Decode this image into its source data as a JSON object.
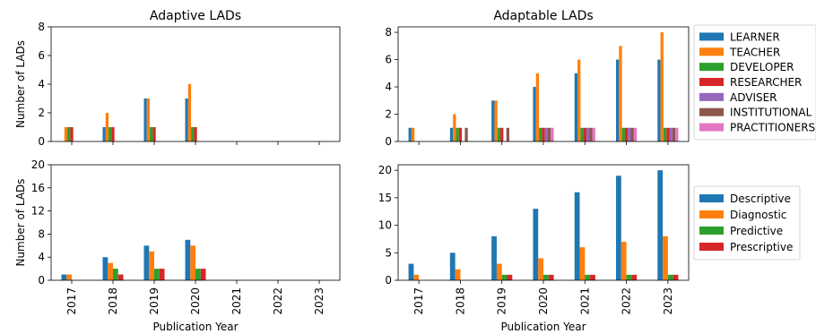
{
  "chart_data": [
    {
      "id": "adaptive-roles",
      "type": "bar",
      "title": "Adaptive LADs",
      "ylabel": "Number of LADs",
      "xlabel": "",
      "ylim": [
        0,
        8
      ],
      "yticks": [
        0,
        2,
        4,
        6,
        8
      ],
      "categories": [
        "2017",
        "2018",
        "2019",
        "2020",
        "2021",
        "2022",
        "2023"
      ],
      "show_xtick_labels": false,
      "series": [
        {
          "name": "LEARNER",
          "color": "#1f77b4",
          "values": [
            0,
            1,
            3,
            3,
            0,
            0,
            0
          ]
        },
        {
          "name": "TEACHER",
          "color": "#ff7f0e",
          "values": [
            1,
            2,
            3,
            4,
            0,
            0,
            0
          ]
        },
        {
          "name": "DEVELOPER",
          "color": "#2ca02c",
          "values": [
            1,
            1,
            1,
            1,
            0,
            0,
            0
          ]
        },
        {
          "name": "RESEARCHER",
          "color": "#d62728",
          "values": [
            1,
            1,
            1,
            1,
            0,
            0,
            0
          ]
        },
        {
          "name": "ADVISER",
          "color": "#9467bd",
          "values": [
            0,
            0,
            0,
            0,
            0,
            0,
            0
          ]
        },
        {
          "name": "INSTITUTIONAL",
          "color": "#8c564b",
          "values": [
            0,
            0,
            0,
            0,
            0,
            0,
            0
          ]
        },
        {
          "name": "PRACTITIONERS",
          "color": "#e377c2",
          "values": [
            0,
            0,
            0,
            0,
            0,
            0,
            0
          ]
        }
      ]
    },
    {
      "id": "adaptable-roles",
      "type": "bar",
      "title": "Adaptable LADs",
      "ylabel": "",
      "xlabel": "",
      "ylim": [
        0,
        8.4
      ],
      "yticks": [
        0,
        2,
        4,
        6,
        8
      ],
      "categories": [
        "2017",
        "2018",
        "2019",
        "2020",
        "2021",
        "2022",
        "2023"
      ],
      "show_xtick_labels": false,
      "legend": "outside-right",
      "series": [
        {
          "name": "LEARNER",
          "color": "#1f77b4",
          "values": [
            1,
            1,
            3,
            4,
            5,
            6,
            6
          ]
        },
        {
          "name": "TEACHER",
          "color": "#ff7f0e",
          "values": [
            1,
            2,
            3,
            5,
            6,
            7,
            8
          ]
        },
        {
          "name": "DEVELOPER",
          "color": "#2ca02c",
          "values": [
            0,
            1,
            1,
            1,
            1,
            1,
            1
          ]
        },
        {
          "name": "RESEARCHER",
          "color": "#d62728",
          "values": [
            0,
            1,
            1,
            1,
            1,
            1,
            1
          ]
        },
        {
          "name": "ADVISER",
          "color": "#9467bd",
          "values": [
            0,
            0,
            0,
            1,
            1,
            1,
            1
          ]
        },
        {
          "name": "INSTITUTIONAL",
          "color": "#8c564b",
          "values": [
            0,
            1,
            1,
            1,
            1,
            1,
            1
          ]
        },
        {
          "name": "PRACTITIONERS",
          "color": "#e377c2",
          "values": [
            0,
            0,
            0,
            1,
            1,
            1,
            1
          ]
        }
      ]
    },
    {
      "id": "adaptive-types",
      "type": "bar",
      "title": "",
      "ylabel": "Number of LADs",
      "xlabel": "Publication Year",
      "ylim": [
        0,
        20
      ],
      "yticks": [
        0,
        4,
        8,
        12,
        16,
        20
      ],
      "categories": [
        "2017",
        "2018",
        "2019",
        "2020",
        "2021",
        "2022",
        "2023"
      ],
      "show_xtick_labels": true,
      "series": [
        {
          "name": "Descriptive",
          "color": "#1f77b4",
          "values": [
            1,
            4,
            6,
            7,
            0,
            0,
            0
          ]
        },
        {
          "name": "Diagnostic",
          "color": "#ff7f0e",
          "values": [
            1,
            3,
            5,
            6,
            0,
            0,
            0
          ]
        },
        {
          "name": "Predictive",
          "color": "#2ca02c",
          "values": [
            0,
            2,
            2,
            2,
            0,
            0,
            0
          ]
        },
        {
          "name": "Prescriptive",
          "color": "#d62728",
          "values": [
            0,
            1,
            2,
            2,
            0,
            0,
            0
          ]
        }
      ]
    },
    {
      "id": "adaptable-types",
      "type": "bar",
      "title": "",
      "ylabel": "",
      "xlabel": "Publication Year",
      "ylim": [
        0,
        21
      ],
      "yticks": [
        0,
        5,
        10,
        15,
        20
      ],
      "categories": [
        "2017",
        "2018",
        "2019",
        "2020",
        "2021",
        "2022",
        "2023"
      ],
      "show_xtick_labels": true,
      "legend": "outside-right",
      "series": [
        {
          "name": "Descriptive",
          "color": "#1f77b4",
          "values": [
            3,
            5,
            8,
            13,
            16,
            19,
            20
          ]
        },
        {
          "name": "Diagnostic",
          "color": "#ff7f0e",
          "values": [
            1,
            2,
            3,
            4,
            6,
            7,
            8
          ]
        },
        {
          "name": "Predictive",
          "color": "#2ca02c",
          "values": [
            0,
            0,
            1,
            1,
            1,
            1,
            1
          ]
        },
        {
          "name": "Prescriptive",
          "color": "#d62728",
          "values": [
            0,
            0,
            1,
            1,
            1,
            1,
            1
          ]
        }
      ]
    }
  ]
}
